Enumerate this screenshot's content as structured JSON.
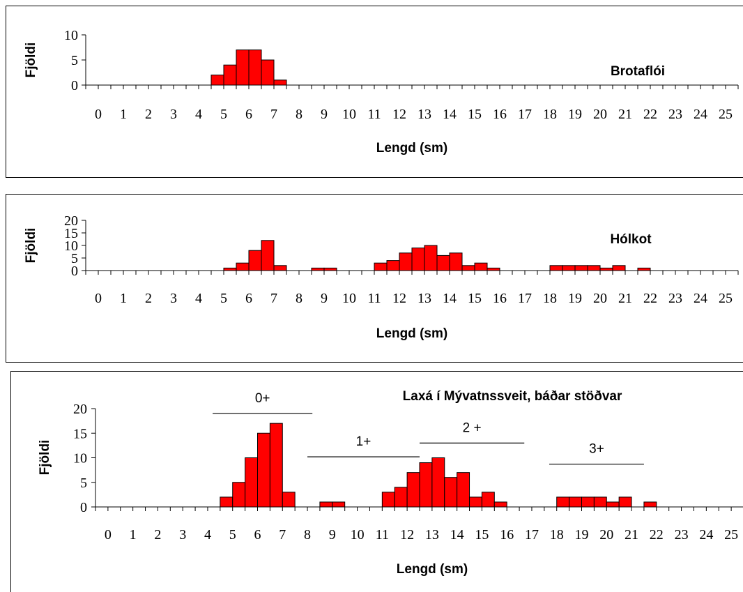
{
  "chart_data": [
    {
      "type": "bar",
      "title": "Brotaflói",
      "xlabel": "Lengd (sm)",
      "ylabel": "Fjöldi",
      "ylim": [
        0,
        10
      ],
      "yticks": [
        "0",
        "5",
        "10"
      ],
      "xticks": [
        "0",
        "1",
        "2",
        "3",
        "4",
        "5",
        "6",
        "7",
        "8",
        "9",
        "10",
        "11",
        "12",
        "13",
        "14",
        "15",
        "16",
        "17",
        "18",
        "19",
        "20",
        "21",
        "22",
        "23",
        "24",
        "25"
      ],
      "x": [
        5,
        5.5,
        6,
        6.5,
        7,
        7.5
      ],
      "values": [
        2,
        4,
        7,
        7,
        5,
        1
      ],
      "bar_color": "#ff0000",
      "grid": false,
      "legend": "none"
    },
    {
      "type": "bar",
      "title": "Hólkot",
      "xlabel": "Lengd (sm)",
      "ylabel": "Fjöldi",
      "ylim": [
        0,
        20
      ],
      "yticks": [
        "0",
        "5",
        "10",
        "15",
        "20"
      ],
      "xticks": [
        "0",
        "1",
        "2",
        "3",
        "4",
        "5",
        "6",
        "7",
        "8",
        "9",
        "10",
        "11",
        "12",
        "13",
        "14",
        "15",
        "16",
        "17",
        "18",
        "19",
        "20",
        "21",
        "22",
        "23",
        "24",
        "25"
      ],
      "x": [
        5.5,
        6,
        6.5,
        7,
        7.5,
        9,
        9.5,
        11.5,
        12,
        12.5,
        13,
        13.5,
        14,
        14.5,
        15,
        15.5,
        16,
        18.5,
        19,
        19.5,
        20,
        20.5,
        21,
        22
      ],
      "values": [
        1,
        3,
        8,
        12,
        2,
        1,
        1,
        3,
        4,
        7,
        9,
        10,
        6,
        7,
        2,
        3,
        1,
        2,
        2,
        2,
        2,
        1,
        2,
        1
      ],
      "bar_color": "#ff0000",
      "grid": false,
      "legend": "none"
    },
    {
      "type": "bar",
      "title": "Laxá í Mývatnssveit,  báðar stöðvar",
      "xlabel": "Lengd (sm)",
      "ylabel": "Fjöldi",
      "ylim": [
        0,
        20
      ],
      "yticks": [
        "0",
        "5",
        "10",
        "15",
        "20"
      ],
      "xticks": [
        "0",
        "1",
        "2",
        "3",
        "4",
        "5",
        "6",
        "7",
        "8",
        "9",
        "10",
        "11",
        "12",
        "13",
        "14",
        "15",
        "16",
        "17",
        "18",
        "19",
        "20",
        "21",
        "22",
        "23",
        "24",
        "25"
      ],
      "x": [
        5,
        5.5,
        6,
        6.5,
        7,
        7.5,
        9,
        9.5,
        11.5,
        12,
        12.5,
        13,
        13.5,
        14,
        14.5,
        15,
        15.5,
        16,
        18.5,
        19,
        19.5,
        20,
        20.5,
        21,
        22
      ],
      "values": [
        2,
        5,
        10,
        15,
        17,
        3,
        1,
        1,
        3,
        4,
        7,
        9,
        10,
        6,
        7,
        2,
        3,
        1,
        2,
        2,
        2,
        2,
        1,
        2,
        1
      ],
      "bar_color": "#ff0000",
      "grid": false,
      "legend": "none",
      "annotations": [
        {
          "text": "0+",
          "x_start": 4.7,
          "x_end": 8.7,
          "y": 19
        },
        {
          "text": "1+",
          "x_start": 8.5,
          "x_end": 13,
          "y": 10.2
        },
        {
          "text": "2 +",
          "x_start": 13,
          "x_end": 17.2,
          "y": 13
        },
        {
          "text": "3+",
          "x_start": 18.2,
          "x_end": 22,
          "y": 8.7
        }
      ]
    }
  ]
}
